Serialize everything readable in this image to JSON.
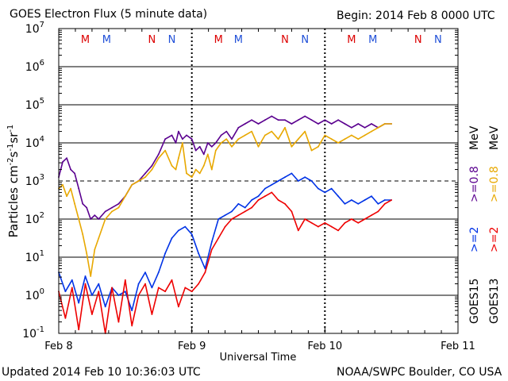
{
  "chart_data": {
    "type": "line",
    "title": "GOES Electron Flux (5 minute data)",
    "begin_label": "Begin: 2014 Feb 8 0000 UTC",
    "xlabel": "Universal Time",
    "ylabel_main": "Particles cm",
    "ylabel_sup1": "-2",
    "ylabel_mid1": "s",
    "ylabel_sup2": "-1",
    "ylabel_mid2": "sr",
    "ylabel_sup3": "-1",
    "x_unit": "days since 2014 Feb 8 00:00 UTC",
    "xlim": [
      0,
      3
    ],
    "ylim_log10": [
      -1,
      7
    ],
    "y_ticks": [
      {
        "base": "10",
        "exp": "-1",
        "log": -1
      },
      {
        "base": "10",
        "exp": "0",
        "log": 0
      },
      {
        "base": "10",
        "exp": "1",
        "log": 1
      },
      {
        "base": "10",
        "exp": "2",
        "log": 2
      },
      {
        "base": "10",
        "exp": "3",
        "log": 3
      },
      {
        "base": "10",
        "exp": "4",
        "log": 4
      },
      {
        "base": "10",
        "exp": "5",
        "log": 5
      },
      {
        "base": "10",
        "exp": "6",
        "log": 6
      },
      {
        "base": "10",
        "exp": "7",
        "log": 7
      }
    ],
    "x_ticks": [
      {
        "label": "Feb 8",
        "x": 0
      },
      {
        "label": "Feb 9",
        "x": 1
      },
      {
        "label": "Feb 10",
        "x": 2
      },
      {
        "label": "Feb 11",
        "x": 3
      }
    ],
    "alert_threshold_log10": 3,
    "day_boundaries": [
      1,
      2
    ],
    "event_markers": [
      {
        "label": "M",
        "x": 0.2,
        "color": "#dd0000"
      },
      {
        "label": "M",
        "x": 0.36,
        "color": "#1f4fd8"
      },
      {
        "label": "N",
        "x": 0.7,
        "color": "#dd0000"
      },
      {
        "label": "N",
        "x": 0.85,
        "color": "#1f4fd8"
      },
      {
        "label": "M",
        "x": 1.2,
        "color": "#dd0000"
      },
      {
        "label": "M",
        "x": 1.35,
        "color": "#1f4fd8"
      },
      {
        "label": "N",
        "x": 1.7,
        "color": "#dd0000"
      },
      {
        "label": "N",
        "x": 1.85,
        "color": "#1f4fd8"
      },
      {
        "label": "M",
        "x": 2.2,
        "color": "#dd0000"
      },
      {
        "label": "M",
        "x": 2.36,
        "color": "#1f4fd8"
      },
      {
        "label": "N",
        "x": 2.7,
        "color": "#dd0000"
      },
      {
        "label": "N",
        "x": 2.85,
        "color": "#1f4fd8"
      }
    ],
    "legend": {
      "goes15_label": "GOES15",
      "goes13_label": "GOES13",
      "unit": "MeV",
      "e2_label": ">=2",
      "e08_label": ">=0.8"
    },
    "series": [
      {
        "name": "GOES15 >=0.8 MeV",
        "color": "#5a008f",
        "x": [
          0,
          0.03,
          0.06,
          0.09,
          0.12,
          0.15,
          0.18,
          0.21,
          0.24,
          0.27,
          0.3,
          0.35,
          0.4,
          0.45,
          0.5,
          0.55,
          0.6,
          0.65,
          0.7,
          0.75,
          0.8,
          0.85,
          0.88,
          0.9,
          0.93,
          0.96,
          1.0,
          1.03,
          1.06,
          1.09,
          1.12,
          1.15,
          1.18,
          1.22,
          1.26,
          1.3,
          1.35,
          1.4,
          1.45,
          1.5,
          1.55,
          1.6,
          1.65,
          1.7,
          1.75,
          1.8,
          1.85,
          1.9,
          1.95,
          2.0,
          2.05,
          2.1,
          2.15,
          2.2,
          2.25,
          2.3,
          2.35,
          2.4,
          2.45,
          2.5
        ],
        "log10": [
          3.1,
          3.5,
          3.6,
          3.3,
          3.2,
          2.8,
          2.4,
          2.3,
          2.0,
          2.1,
          2.0,
          2.2,
          2.3,
          2.4,
          2.6,
          2.9,
          3.0,
          3.2,
          3.4,
          3.7,
          4.1,
          4.2,
          4.0,
          4.3,
          4.1,
          4.2,
          4.1,
          3.8,
          3.9,
          3.7,
          4.0,
          3.9,
          4.0,
          4.2,
          4.3,
          4.1,
          4.4,
          4.5,
          4.6,
          4.5,
          4.6,
          4.7,
          4.6,
          4.6,
          4.5,
          4.6,
          4.7,
          4.6,
          4.5,
          4.6,
          4.5,
          4.6,
          4.5,
          4.4,
          4.5,
          4.4,
          4.5,
          4.4,
          4.5,
          4.5
        ]
      },
      {
        "name": "GOES13 >=0.8 MeV",
        "color": "#e8a800",
        "x": [
          0,
          0.03,
          0.06,
          0.09,
          0.12,
          0.15,
          0.18,
          0.21,
          0.24,
          0.27,
          0.3,
          0.35,
          0.4,
          0.45,
          0.5,
          0.55,
          0.6,
          0.65,
          0.7,
          0.75,
          0.8,
          0.85,
          0.88,
          0.9,
          0.93,
          0.96,
          1.0,
          1.03,
          1.06,
          1.09,
          1.12,
          1.15,
          1.18,
          1.22,
          1.26,
          1.3,
          1.35,
          1.4,
          1.45,
          1.5,
          1.55,
          1.6,
          1.65,
          1.7,
          1.75,
          1.8,
          1.85,
          1.9,
          1.95,
          2.0,
          2.05,
          2.1,
          2.15,
          2.2,
          2.25,
          2.3,
          2.35,
          2.4,
          2.45,
          2.5
        ],
        "log10": [
          2.8,
          2.9,
          2.6,
          2.8,
          2.4,
          2.0,
          1.6,
          1.1,
          0.5,
          1.2,
          1.5,
          2.0,
          2.2,
          2.3,
          2.6,
          2.9,
          3.0,
          3.1,
          3.3,
          3.6,
          3.8,
          3.4,
          3.3,
          3.6,
          4.0,
          3.2,
          3.1,
          3.3,
          3.2,
          3.4,
          3.7,
          3.3,
          3.8,
          4.0,
          4.1,
          3.9,
          4.1,
          4.2,
          4.3,
          3.9,
          4.2,
          4.3,
          4.1,
          4.4,
          3.9,
          4.1,
          4.3,
          3.8,
          3.9,
          4.2,
          4.1,
          4.0,
          4.1,
          4.2,
          4.1,
          4.2,
          4.3,
          4.4,
          4.5,
          4.5
        ]
      },
      {
        "name": "GOES15 >=2 MeV",
        "color": "#0033e6",
        "x": [
          0,
          0.05,
          0.1,
          0.15,
          0.2,
          0.25,
          0.3,
          0.35,
          0.4,
          0.45,
          0.5,
          0.55,
          0.6,
          0.65,
          0.7,
          0.75,
          0.8,
          0.85,
          0.9,
          0.95,
          1.0,
          1.05,
          1.1,
          1.15,
          1.2,
          1.25,
          1.3,
          1.35,
          1.4,
          1.45,
          1.5,
          1.55,
          1.6,
          1.65,
          1.7,
          1.75,
          1.8,
          1.85,
          1.9,
          1.95,
          2.0,
          2.05,
          2.1,
          2.15,
          2.2,
          2.25,
          2.3,
          2.35,
          2.4,
          2.45,
          2.5
        ],
        "log10": [
          0.6,
          0.1,
          0.4,
          -0.2,
          0.5,
          0.0,
          0.3,
          -0.3,
          0.2,
          0.0,
          0.1,
          -0.4,
          0.3,
          0.6,
          0.2,
          0.6,
          1.1,
          1.5,
          1.7,
          1.8,
          1.6,
          1.1,
          0.7,
          1.4,
          2.0,
          2.1,
          2.2,
          2.4,
          2.3,
          2.5,
          2.6,
          2.8,
          2.9,
          3.0,
          3.1,
          3.2,
          3.0,
          3.1,
          3.0,
          2.8,
          2.7,
          2.8,
          2.6,
          2.4,
          2.5,
          2.4,
          2.5,
          2.6,
          2.4,
          2.5,
          2.5
        ]
      },
      {
        "name": "GOES13 >=2 MeV",
        "color": "#ee0000",
        "x": [
          0,
          0.05,
          0.1,
          0.15,
          0.2,
          0.25,
          0.3,
          0.35,
          0.4,
          0.45,
          0.5,
          0.55,
          0.6,
          0.65,
          0.7,
          0.75,
          0.8,
          0.85,
          0.9,
          0.95,
          1.0,
          1.05,
          1.1,
          1.15,
          1.2,
          1.25,
          1.3,
          1.35,
          1.4,
          1.45,
          1.5,
          1.55,
          1.6,
          1.65,
          1.7,
          1.75,
          1.8,
          1.85,
          1.9,
          1.95,
          2.0,
          2.05,
          2.1,
          2.15,
          2.2,
          2.25,
          2.3,
          2.35,
          2.4,
          2.45,
          2.5
        ],
        "log10": [
          0.1,
          -0.6,
          0.2,
          -0.9,
          0.3,
          -0.5,
          0.1,
          -1.0,
          0.2,
          -0.7,
          0.4,
          -0.8,
          0.0,
          0.3,
          -0.5,
          0.2,
          0.1,
          0.4,
          -0.3,
          0.2,
          0.1,
          0.3,
          0.6,
          1.2,
          1.5,
          1.8,
          2.0,
          2.1,
          2.2,
          2.3,
          2.5,
          2.6,
          2.7,
          2.5,
          2.4,
          2.2,
          1.7,
          2.0,
          1.9,
          1.8,
          1.9,
          1.8,
          1.7,
          1.9,
          2.0,
          1.9,
          2.0,
          2.1,
          2.2,
          2.4,
          2.5
        ]
      }
    ]
  },
  "footer": {
    "updated": "Updated 2014 Feb 10 10:36:03 UTC",
    "credit": "NOAA/SWPC Boulder, CO USA"
  }
}
